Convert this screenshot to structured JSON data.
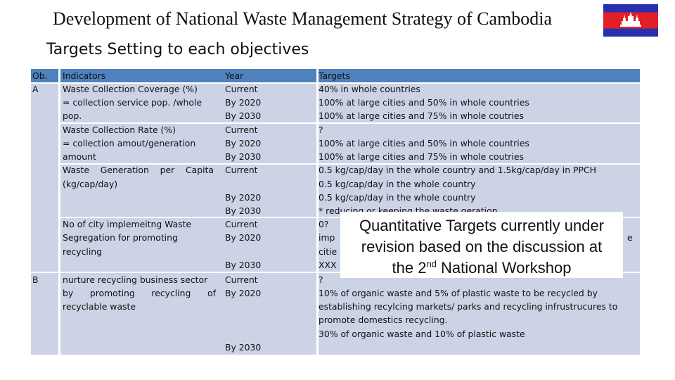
{
  "title": "Development of National Waste Management Strategy of Cambodia",
  "subtitle": "Targets Setting to each objectives",
  "flag": {
    "colors": {
      "blue": "#2a2fb0",
      "red": "#e21e26",
      "temple": "#ffffff"
    }
  },
  "table": {
    "headers": {
      "ob": "Ob.",
      "indicators": "Indicators",
      "year": "Year",
      "targets": "Targets"
    },
    "ob_a": "A",
    "ob_b": "B",
    "indicators": [
      "Waste Collection Coverage (%)",
      "= collection service pop. /whole",
      "pop.",
      "Waste Collection Rate (%)",
      "= collection amout/generation",
      "amount",
      "Waste    Generation    per    Capita",
      "(kg/cap/day)",
      "No of city implemeitng Waste",
      "Segregation for promoting",
      "recycling",
      "nurture recycling business sector",
      "by      promoting      recycling      of",
      "recyclable waste"
    ],
    "years": [
      "Current",
      "By 2020",
      "By 2030",
      "Current",
      "By 2020",
      "By 2030",
      "Current",
      "By 2020",
      "By 2030",
      "Current",
      "By 2020",
      "By 2030",
      "Current",
      "By 2020",
      "By 2030"
    ],
    "targets": [
      "40% in whole countries",
      "100% at large cities and 50% in whole countries",
      "100% at large cities and 75% in whole coutries",
      "?",
      "100% at large cities and 50% in whole countries",
      "100% at large cities and 75% in whole coutries",
      "0.5 kg/cap/day in the whole country and 1.5kg/cap/day in PPCH",
      "0.5 kg/cap/day in the whole country",
      "0.5 kg/cap/day in the whole country",
      "* reducing or keeping the waste geration",
      "0?",
      "imp",
      "e",
      "citie",
      "XXX",
      "?",
      "10% of organic waste and 5% of plastic waste to be recycled by",
      "establishing recylcing markets/ parks and recycling infrustrucures to",
      "promote domestics recycling.",
      "30% of organic waste and 10% of plastic waste"
    ]
  },
  "callout": {
    "line1": "Quantitative Targets currently under",
    "line2": "revision based on the discussion at",
    "line3_pre": "the 2",
    "line3_sup": "nd",
    "line3_post": " National Workshop"
  }
}
